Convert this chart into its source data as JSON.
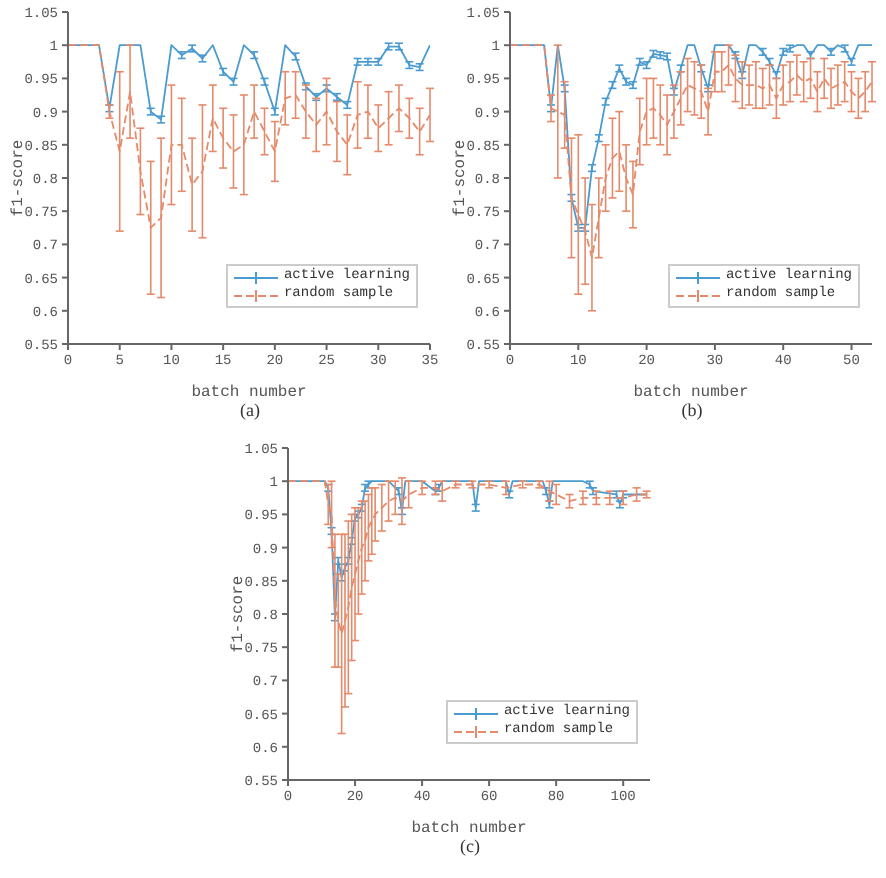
{
  "chart_data": [
    {
      "type": "line",
      "xlabel": "batch number",
      "ylabel": "f1-score",
      "annotations": [
        "(a)"
      ],
      "legend": "bottom right",
      "grid": false,
      "marker": "none",
      "xlim": [
        0,
        35
      ],
      "xticks": [
        0,
        5,
        10,
        15,
        20,
        25,
        30,
        35
      ],
      "ylim": [
        0.55,
        1.05
      ],
      "yticks": [
        0.55,
        0.6,
        0.65,
        0.7,
        0.75,
        0.8,
        0.85,
        0.9,
        0.95,
        1,
        1.05
      ],
      "x": [
        0,
        1,
        2,
        3,
        4,
        5,
        6,
        7,
        8,
        9,
        10,
        11,
        12,
        13,
        14,
        15,
        16,
        17,
        18,
        19,
        20,
        21,
        22,
        23,
        24,
        25,
        26,
        27,
        28,
        29,
        30,
        31,
        32,
        33,
        34,
        35
      ],
      "series": [
        {
          "name": "active learning",
          "color": "#4a9bd0",
          "line_style": "solid",
          "values": [
            1,
            1,
            1,
            1,
            0.905,
            1,
            1,
            1,
            0.9,
            0.888,
            1,
            0.985,
            0.995,
            0.98,
            1,
            0.96,
            0.945,
            1,
            0.985,
            0.945,
            0.9,
            1,
            0.983,
            0.938,
            0.922,
            0.935,
            0.922,
            0.91,
            0.975,
            0.975,
            0.975,
            0.998,
            0.998,
            0.97,
            0.967,
            1
          ],
          "errors": [
            null,
            null,
            null,
            null,
            0.005,
            null,
            null,
            null,
            0.005,
            0.005,
            null,
            0.005,
            0.005,
            0.005,
            null,
            0.005,
            0.005,
            null,
            0.005,
            0.005,
            0.005,
            null,
            0.005,
            0.005,
            0.005,
            0.005,
            0.005,
            0.005,
            0.005,
            0.005,
            0.005,
            0.005,
            0.005,
            0.005,
            0.005,
            null
          ]
        },
        {
          "name": "random sample",
          "color": "#e58a6a",
          "line_style": "dashed",
          "values": [
            1,
            1,
            1,
            1,
            0.9,
            0.84,
            0.93,
            0.81,
            0.725,
            0.74,
            0.85,
            0.85,
            0.79,
            0.81,
            0.89,
            0.86,
            0.84,
            0.85,
            0.9,
            0.87,
            0.84,
            0.92,
            0.925,
            0.9,
            0.88,
            0.9,
            0.87,
            0.85,
            0.895,
            0.9,
            0.875,
            0.89,
            0.905,
            0.89,
            0.87,
            0.895
          ],
          "errors": [
            null,
            null,
            null,
            null,
            0.01,
            0.12,
            0.07,
            0.065,
            0.1,
            0.12,
            0.09,
            0.07,
            0.07,
            0.1,
            0.05,
            0.045,
            0.055,
            0.075,
            0.04,
            0.035,
            0.045,
            0.04,
            0.035,
            0.04,
            0.04,
            0.05,
            0.045,
            0.045,
            0.05,
            0.04,
            0.035,
            0.04,
            0.035,
            0.03,
            0.035,
            0.04
          ]
        }
      ]
    },
    {
      "type": "line",
      "xlabel": "batch number",
      "ylabel": "f1-score",
      "annotations": [
        "(b)"
      ],
      "legend": "bottom right",
      "grid": false,
      "marker": "none",
      "xlim": [
        0,
        53
      ],
      "xticks": [
        0,
        10,
        20,
        30,
        40,
        50
      ],
      "ylim": [
        0.55,
        1.05
      ],
      "yticks": [
        0.55,
        0.6,
        0.65,
        0.7,
        0.75,
        0.8,
        0.85,
        0.9,
        0.95,
        1,
        1.05
      ],
      "x": [
        0,
        1,
        2,
        3,
        4,
        5,
        6,
        7,
        8,
        9,
        10,
        11,
        12,
        13,
        14,
        15,
        16,
        17,
        18,
        19,
        20,
        21,
        22,
        23,
        24,
        25,
        26,
        27,
        28,
        29,
        30,
        31,
        32,
        33,
        34,
        35,
        36,
        37,
        38,
        39,
        40,
        41,
        42,
        43,
        44,
        45,
        46,
        47,
        48,
        49,
        50,
        51,
        52,
        53
      ],
      "series": [
        {
          "name": "active learning",
          "color": "#4a9bd0",
          "line_style": "solid",
          "values": [
            1,
            1,
            1,
            1,
            1,
            1,
            0.905,
            1,
            0.935,
            0.77,
            0.725,
            0.725,
            0.815,
            0.86,
            0.915,
            0.94,
            0.965,
            0.945,
            0.94,
            0.975,
            0.97,
            0.987,
            0.985,
            0.983,
            0.93,
            0.965,
            1,
            1,
            0.965,
            0.935,
            1,
            1,
            1,
            0.985,
            0.955,
            1,
            1,
            0.99,
            0.975,
            0.955,
            0.99,
            0.995,
            1,
            1,
            0.985,
            1,
            1,
            0.99,
            1,
            0.995,
            0.975,
            1,
            1,
            1
          ],
          "errors": [
            null,
            null,
            null,
            null,
            null,
            null,
            0.005,
            null,
            0.005,
            0.005,
            0.005,
            0.005,
            0.005,
            0.005,
            0.005,
            0.005,
            0.005,
            0.005,
            0.005,
            0.005,
            0.005,
            0.005,
            0.005,
            0.005,
            0.005,
            0.005,
            null,
            null,
            0.005,
            0.005,
            null,
            null,
            null,
            0.005,
            0.005,
            null,
            null,
            0.005,
            0.005,
            0.005,
            0.005,
            0.005,
            null,
            null,
            0.005,
            null,
            null,
            0.005,
            null,
            0.005,
            0.005,
            null,
            null,
            null
          ]
        },
        {
          "name": "random sample",
          "color": "#e58a6a",
          "line_style": "dashed",
          "values": [
            1,
            1,
            1,
            1,
            1,
            1,
            0.905,
            0.9,
            0.895,
            0.77,
            0.745,
            0.72,
            0.68,
            0.74,
            0.8,
            0.83,
            0.84,
            0.8,
            0.775,
            0.87,
            0.9,
            0.905,
            0.895,
            0.88,
            0.9,
            0.92,
            0.94,
            0.935,
            0.93,
            0.9,
            0.96,
            0.96,
            0.97,
            0.95,
            0.94,
            0.94,
            0.94,
            0.935,
            0.94,
            0.92,
            0.94,
            0.945,
            0.955,
            0.945,
            0.95,
            0.93,
            0.95,
            0.935,
            0.94,
            0.945,
            0.93,
            0.92,
            0.93,
            0.945
          ],
          "errors": [
            null,
            null,
            null,
            null,
            null,
            null,
            0.02,
            0.1,
            0.05,
            0.09,
            0.12,
            0.08,
            0.08,
            0.06,
            0.05,
            0.06,
            0.06,
            0.05,
            0.05,
            0.05,
            0.05,
            0.045,
            0.045,
            0.045,
            0.04,
            0.04,
            0.04,
            0.04,
            0.04,
            0.035,
            0.03,
            0.03,
            0.03,
            0.035,
            0.035,
            0.03,
            0.035,
            0.03,
            0.03,
            0.03,
            0.03,
            0.03,
            0.03,
            0.03,
            0.03,
            0.03,
            0.03,
            0.03,
            0.03,
            0.03,
            0.03,
            0.03,
            0.03,
            0.03
          ]
        }
      ]
    },
    {
      "type": "line",
      "xlabel": "batch number",
      "ylabel": "f1-score",
      "annotations": [
        "(c)"
      ],
      "legend": "bottom right",
      "grid": false,
      "marker": "none",
      "xlim": [
        0,
        108
      ],
      "xticks": [
        0,
        20,
        40,
        60,
        80,
        100
      ],
      "ylim": [
        0.55,
        1.05
      ],
      "yticks": [
        0.55,
        0.6,
        0.65,
        0.7,
        0.75,
        0.8,
        0.85,
        0.9,
        0.95,
        1,
        1.05
      ],
      "series": [
        {
          "name": "active learning",
          "color": "#4a9bd0",
          "line_style": "solid",
          "x": [
            0,
            11,
            12,
            13,
            14,
            15,
            16,
            17,
            18,
            19,
            20,
            21,
            22,
            23,
            24,
            25,
            30,
            33,
            34,
            35,
            40,
            44,
            45,
            46,
            55,
            56,
            57,
            65,
            66,
            67,
            76,
            77,
            78,
            79,
            88,
            90,
            91,
            98,
            99,
            100,
            107
          ],
          "values": [
            1,
            1,
            0.99,
            0.925,
            0.795,
            0.88,
            0.855,
            0.87,
            0.88,
            0.91,
            0.945,
            0.95,
            0.96,
            0.99,
            0.995,
            1,
            1,
            0.985,
            0.955,
            1,
            1,
            0.985,
            0.99,
            1,
            1,
            0.96,
            1,
            1,
            0.98,
            1,
            1,
            0.985,
            0.965,
            1,
            1,
            0.995,
            0.985,
            0.98,
            0.965,
            0.98,
            0.98
          ],
          "errors": [
            null,
            null,
            0.005,
            0.005,
            0.005,
            0.005,
            0.005,
            0.005,
            0.005,
            0.005,
            0.005,
            0.005,
            0.005,
            0.005,
            0.005,
            null,
            null,
            0.005,
            0.005,
            null,
            null,
            0.005,
            0.005,
            null,
            null,
            0.005,
            null,
            null,
            0.005,
            null,
            null,
            0.005,
            0.005,
            null,
            null,
            0.005,
            0.005,
            0.005,
            0.005,
            0.005,
            null
          ]
        },
        {
          "name": "random sample",
          "color": "#e58a6a",
          "line_style": "dashed",
          "x": [
            0,
            11,
            12,
            13,
            14,
            15,
            16,
            17,
            18,
            19,
            20,
            21,
            22,
            23,
            24,
            25,
            26,
            28,
            30,
            32,
            34,
            36,
            40,
            44,
            46,
            50,
            55,
            60,
            65,
            70,
            75,
            78,
            80,
            84,
            88,
            92,
            96,
            100,
            104,
            107
          ],
          "values": [
            1,
            1,
            0.965,
            0.95,
            0.82,
            0.79,
            0.77,
            0.79,
            0.81,
            0.84,
            0.86,
            0.88,
            0.9,
            0.91,
            0.93,
            0.94,
            0.95,
            0.96,
            0.97,
            0.975,
            0.97,
            0.98,
            0.99,
            0.99,
            0.985,
            0.995,
            0.995,
            0.995,
            0.99,
            0.995,
            0.995,
            0.985,
            0.98,
            0.97,
            0.975,
            0.975,
            0.975,
            0.975,
            0.98,
            0.98
          ],
          "errors": [
            null,
            null,
            0.03,
            0.05,
            0.1,
            0.07,
            0.15,
            0.13,
            0.13,
            0.11,
            0.1,
            0.08,
            0.07,
            0.06,
            0.05,
            0.05,
            0.04,
            0.035,
            0.03,
            0.025,
            0.035,
            0.02,
            0.01,
            0.01,
            0.015,
            0.005,
            0.005,
            0.005,
            0.01,
            0.005,
            0.005,
            0.015,
            0.015,
            0.01,
            0.01,
            0.01,
            0.01,
            0.01,
            0.01,
            0.005
          ]
        }
      ]
    }
  ]
}
